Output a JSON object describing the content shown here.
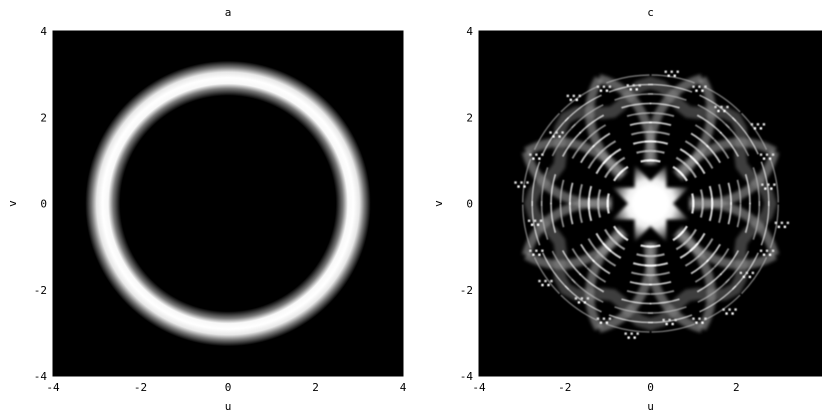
{
  "chart_data": [
    {
      "type": "heatmap",
      "title": "a",
      "xlabel": "u",
      "ylabel": "v",
      "xlim": [
        -4,
        4
      ],
      "ylim": [
        -4,
        4
      ],
      "xticks": [
        -4,
        -2,
        0,
        2,
        4
      ],
      "yticks": [
        -4,
        -2,
        0,
        2,
        4
      ],
      "xtick_labels": [
        "-4",
        "-2",
        "0",
        "2",
        "4"
      ],
      "ytick_labels": [
        "-4",
        "-2",
        "0",
        "2",
        "4"
      ],
      "colormap": [
        "#000000",
        "#ffffff"
      ],
      "pattern": "ring",
      "ring": {
        "center": [
          0,
          0
        ],
        "radius": 2.9,
        "width": 0.52
      },
      "grid": false
    },
    {
      "type": "heatmap",
      "title": "c",
      "xlabel": "u",
      "ylabel": "v",
      "xlim": [
        -4,
        4
      ],
      "ylim": [
        -4,
        4
      ],
      "xticks": [
        -4,
        -2,
        0,
        2,
        4
      ],
      "yticks": [
        -4,
        -2,
        0,
        2,
        4
      ],
      "xtick_labels": [
        "-4",
        "-2",
        "0",
        "2",
        ""
      ],
      "ytick_labels": [
        "-4",
        "-2",
        "0",
        "2",
        "4"
      ],
      "colormap": [
        "#000000",
        "#ffffff"
      ],
      "pattern": "eightfold-interference",
      "structure": {
        "center": [
          0,
          0
        ],
        "lobes": 8,
        "core_radius": 0.55,
        "outer_radius": 3.2,
        "fringe_density": 10
      },
      "grid": false
    }
  ]
}
